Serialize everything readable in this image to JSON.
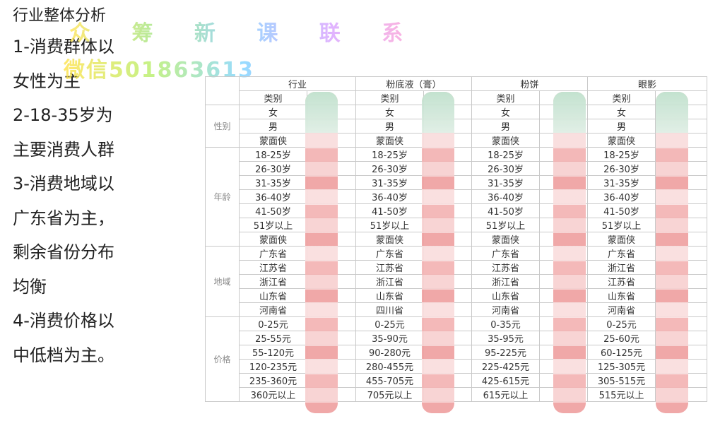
{
  "page": {
    "title": "行业整体分析",
    "points": [
      "1-消费群体以",
      "女性为主",
      "2-18-35岁为",
      "主要消费人群",
      "3-消费地域以",
      "广东省为主，",
      "剩余省份分布",
      "均衡",
      "4-消费价格以",
      "中低档为主。"
    ]
  },
  "watermark": {
    "line1": "众 筹 新 课 联 系",
    "line2": "微信501863613"
  },
  "table": {
    "groups": [
      "行业",
      "粉底液（膏）",
      "粉饼",
      "眼影"
    ],
    "subheader": "类别",
    "sections": [
      {
        "label": "性别",
        "rows": [
          [
            "女",
            "女",
            "女",
            "女"
          ],
          [
            "男",
            "男",
            "男",
            "男"
          ],
          [
            "蒙面侠",
            "蒙面侠",
            "蒙面侠",
            "蒙面侠"
          ]
        ]
      },
      {
        "label": "年龄",
        "rows": [
          [
            "18-25岁",
            "18-25岁",
            "18-25岁",
            "18-25岁"
          ],
          [
            "26-30岁",
            "26-30岁",
            "26-30岁",
            "26-30岁"
          ],
          [
            "31-35岁",
            "31-35岁",
            "31-35岁",
            "31-35岁"
          ],
          [
            "36-40岁",
            "36-40岁",
            "36-40岁",
            "36-40岁"
          ],
          [
            "41-50岁",
            "41-50岁",
            "41-50岁",
            "41-50岁"
          ],
          [
            "51岁以上",
            "51岁以上",
            "51岁以上",
            "51岁以上"
          ],
          [
            "蒙面侠",
            "蒙面侠",
            "蒙面侠",
            "蒙面侠"
          ]
        ]
      },
      {
        "label": "地域",
        "rows": [
          [
            "广东省",
            "广东省",
            "广东省",
            "广东省"
          ],
          [
            "江苏省",
            "江苏省",
            "江苏省",
            "浙江省"
          ],
          [
            "浙江省",
            "浙江省",
            "浙江省",
            "江苏省"
          ],
          [
            "山东省",
            "山东省",
            "山东省",
            "山东省"
          ],
          [
            "河南省",
            "四川省",
            "河南省",
            "河南省"
          ]
        ]
      },
      {
        "label": "价格",
        "rows": [
          [
            "0-25元",
            "0-25元",
            "0-35元",
            "0-25元"
          ],
          [
            "25-55元",
            "35-90元",
            "35-95元",
            "25-60元"
          ],
          [
            "55-120元",
            "90-280元",
            "95-225元",
            "60-125元"
          ],
          [
            "120-235元",
            "280-455元",
            "225-425元",
            "125-305元"
          ],
          [
            "235-360元",
            "455-705元",
            "425-615元",
            "305-515元"
          ],
          [
            "360元以上",
            "705元以上",
            "615元以上",
            "515元以上"
          ]
        ]
      }
    ]
  }
}
